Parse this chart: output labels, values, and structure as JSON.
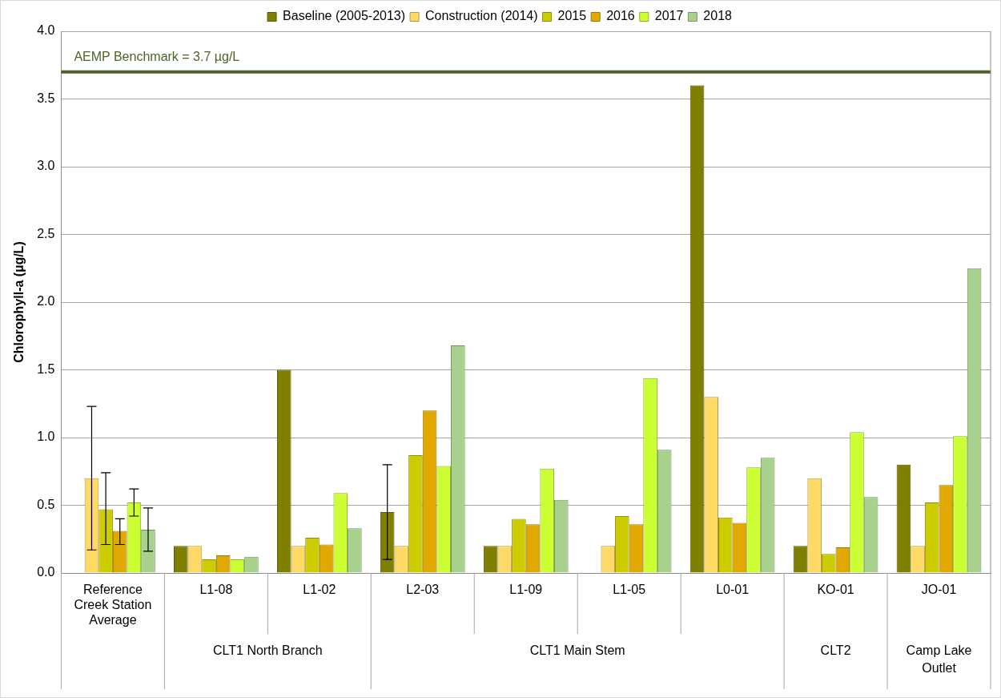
{
  "chart_data": {
    "type": "bar",
    "ylabel": "Chlorophyll-a (µg/L)",
    "categories": [
      "Reference Creek Station Average",
      "L1-08",
      "L1-02",
      "L2-03",
      "L1-09",
      "L1-05",
      "L0-01",
      "KO-01",
      "JO-01"
    ],
    "series": [
      {
        "name": "Baseline (2005-2013)",
        "color": "#7f7f00",
        "values": [
          null,
          0.2,
          1.5,
          0.45,
          0.2,
          null,
          3.6,
          0.2,
          0.8
        ],
        "errors": [
          null,
          null,
          null,
          [
            0.1,
            0.8
          ],
          null,
          null,
          null,
          null,
          null
        ]
      },
      {
        "name": "Construction (2014)",
        "color": "#ffd966",
        "values": [
          0.7,
          0.2,
          0.2,
          0.2,
          0.2,
          0.2,
          1.3,
          0.7,
          0.2
        ],
        "errors": [
          [
            0.17,
            1.23
          ],
          null,
          null,
          null,
          null,
          null,
          null,
          null,
          null
        ]
      },
      {
        "name": "2015",
        "color": "#cccc00",
        "values": [
          0.47,
          0.1,
          0.26,
          0.87,
          0.4,
          0.42,
          0.41,
          0.14,
          0.52
        ],
        "errors": [
          [
            0.21,
            0.74
          ],
          null,
          null,
          null,
          null,
          null,
          null,
          null,
          null
        ]
      },
      {
        "name": "2016",
        "color": "#e0a800",
        "values": [
          0.31,
          0.13,
          0.21,
          1.2,
          0.36,
          0.36,
          0.37,
          0.19,
          0.65
        ],
        "errors": [
          [
            0.21,
            0.4
          ],
          null,
          null,
          null,
          null,
          null,
          null,
          null,
          null
        ]
      },
      {
        "name": "2017",
        "color": "#ccff33",
        "values": [
          0.52,
          0.1,
          0.59,
          0.79,
          0.77,
          1.44,
          0.78,
          1.04,
          1.01
        ],
        "errors": [
          [
            0.42,
            0.62
          ],
          null,
          null,
          null,
          null,
          null,
          null,
          null,
          null
        ]
      },
      {
        "name": "2018",
        "color": "#a9d18e",
        "values": [
          0.32,
          0.12,
          0.33,
          1.68,
          0.54,
          0.91,
          0.85,
          0.56,
          2.25
        ],
        "errors": [
          [
            0.16,
            0.48
          ],
          null,
          null,
          null,
          null,
          null,
          null,
          null,
          null
        ]
      }
    ],
    "ylim": [
      0,
      4
    ],
    "yticks": [
      {
        "value": 0,
        "label": "0.0"
      },
      {
        "value": 0.5,
        "label": "0.5"
      },
      {
        "value": 1,
        "label": "1.0"
      },
      {
        "value": 1.5,
        "label": "1.5"
      },
      {
        "value": 2,
        "label": "2.0"
      },
      {
        "value": 2.5,
        "label": "2.5"
      },
      {
        "value": 3,
        "label": "3.0"
      },
      {
        "value": 3.5,
        "label": "3.5"
      },
      {
        "value": 4,
        "label": "4.0"
      }
    ],
    "ref_lines": [
      {
        "axis": "y",
        "value": 3.7,
        "label": "AEMP Benchmark = 3.7 µg/L",
        "color": "#4f6228"
      }
    ],
    "annotations": [
      "CLT1 North Branch",
      "CLT1 Main Stem",
      "CLT2",
      "Camp Lake Outlet"
    ],
    "grid": "y",
    "legend": "top"
  }
}
